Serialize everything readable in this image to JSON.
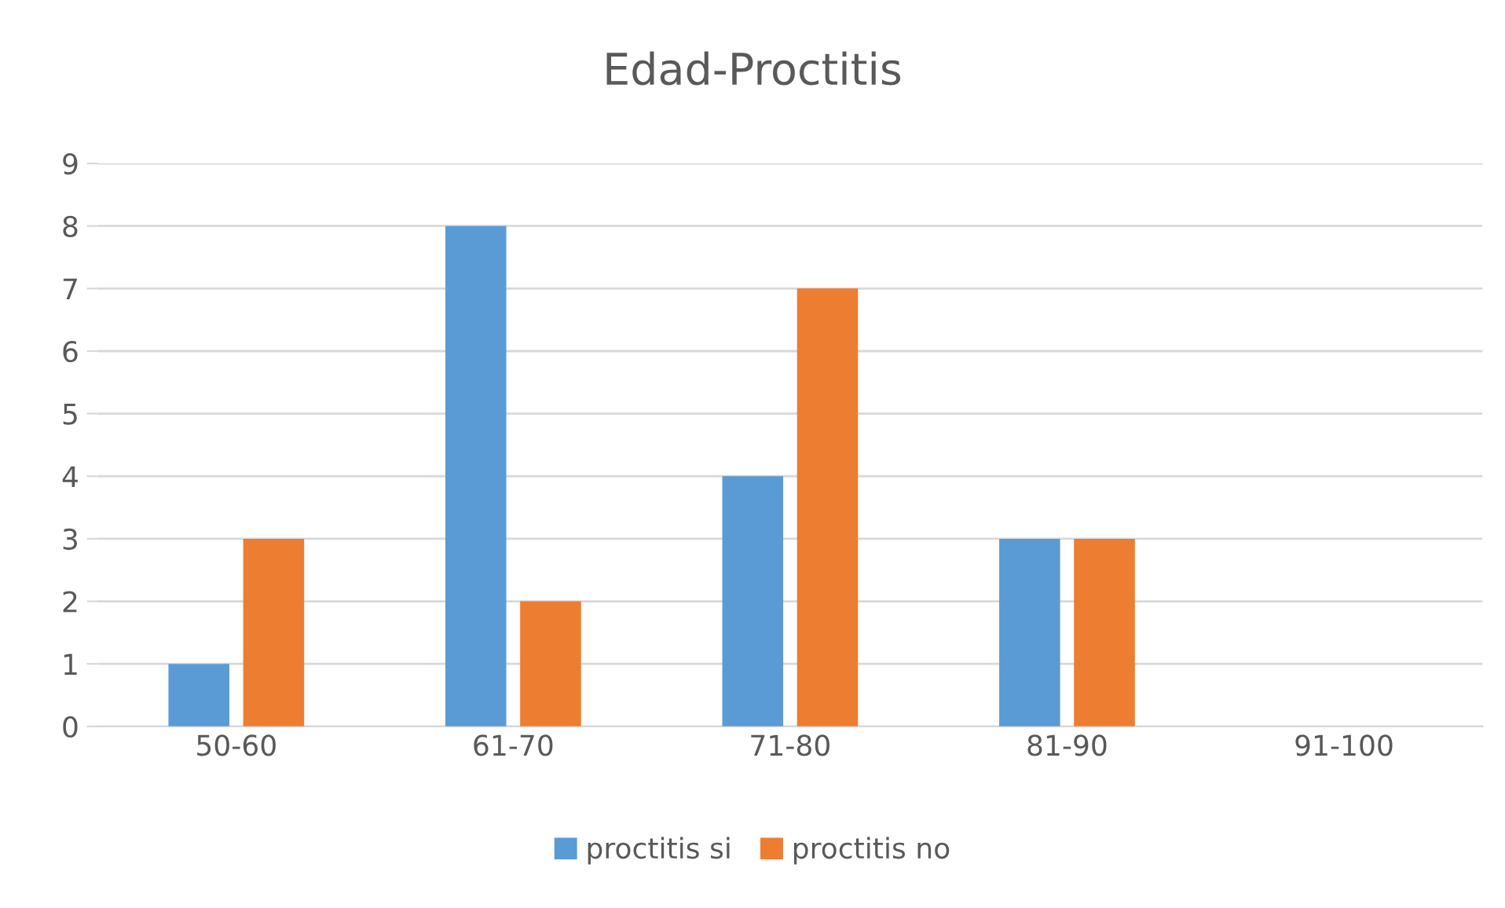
{
  "chart_data": {
    "type": "bar",
    "title": "Edad-Proctitis",
    "categories": [
      "50-60",
      "61-70",
      "71-80",
      "81-90",
      "91-100"
    ],
    "series": [
      {
        "name": "proctitis si",
        "color": "#5b9bd5",
        "values": [
          1,
          8,
          4,
          3,
          null
        ]
      },
      {
        "name": "proctitis no",
        "color": "#ed7d31",
        "values": [
          3,
          2,
          7,
          3,
          null
        ]
      }
    ],
    "ylim": [
      0,
      9
    ],
    "yticks": [
      0,
      1,
      2,
      3,
      4,
      5,
      6,
      7,
      8,
      9
    ],
    "grid": "y",
    "legend": "bottom"
  }
}
